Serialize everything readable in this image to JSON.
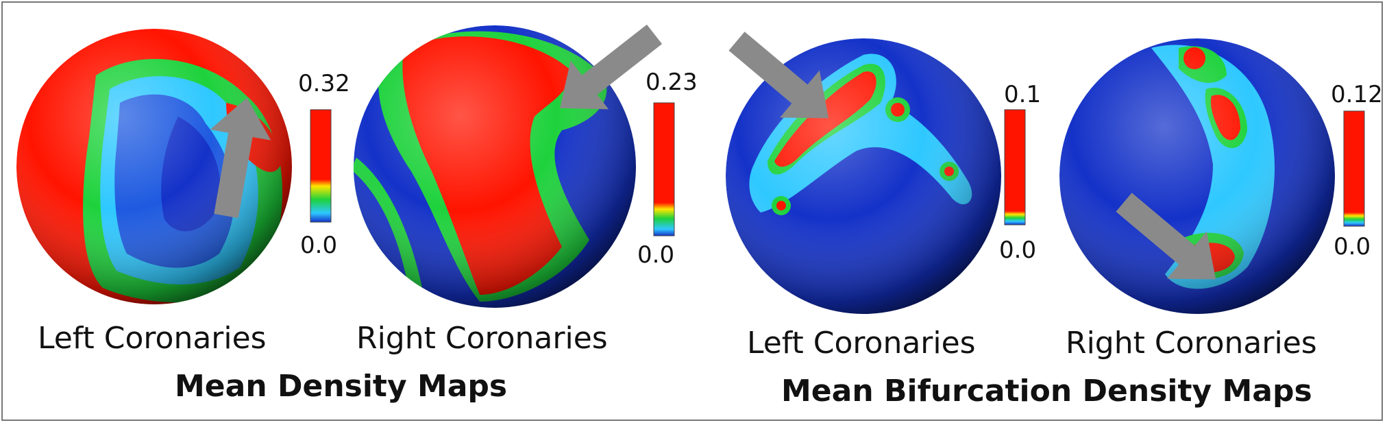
{
  "colors": {
    "low": "#1432c8",
    "mid_low": "#2ec8ff",
    "mid": "#1ed23c",
    "high": "#ff1400",
    "arrow": "#8a8a8a",
    "frame": "#777777"
  },
  "panels": [
    {
      "label": "Left Coronaries",
      "scale_max": "0.32",
      "scale_min": "0.0"
    },
    {
      "label": "Right Coronaries",
      "scale_max": "0.23",
      "scale_min": "0.0"
    },
    {
      "label": "Left Coronaries",
      "scale_max": "0.1",
      "scale_min": "0.0"
    },
    {
      "label": "Right Coronaries",
      "scale_max": "0.12",
      "scale_min": "0.0"
    }
  ],
  "groups": [
    {
      "label": "Mean Density Maps"
    },
    {
      "label": "Mean Bifurcation Density Maps"
    }
  ]
}
